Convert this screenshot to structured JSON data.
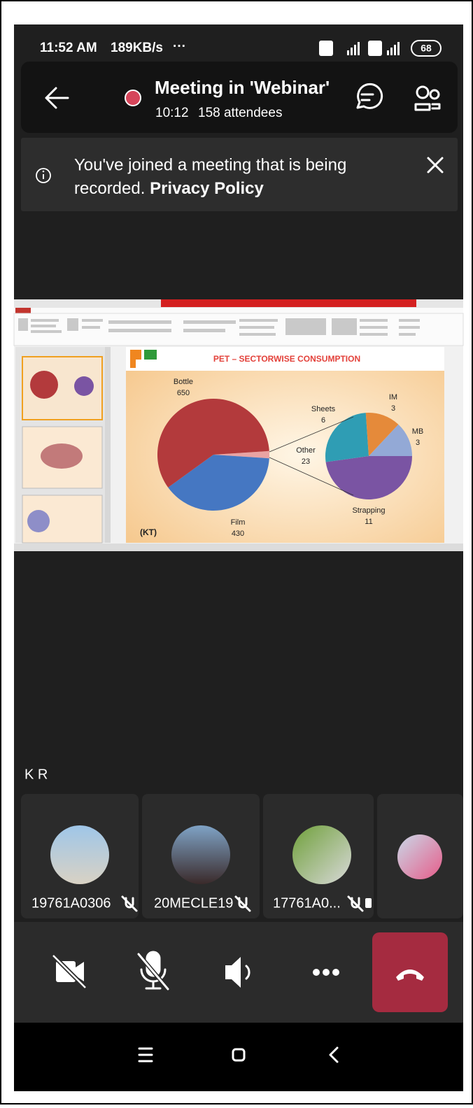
{
  "status_bar": {
    "time": "11:52 AM",
    "speed": "189KB/s",
    "more": "···",
    "battery": "68"
  },
  "header": {
    "title": "Meeting in 'Webinar'",
    "duration": "10:12",
    "attendees": "158 attendees"
  },
  "banner": {
    "text": "You've joined a meeting that is being",
    "text_2": "recorded.",
    "link": "Privacy Policy"
  },
  "slide": {
    "title": "PET – SECTORWISE CONSUMPTION",
    "unit": "(KT)",
    "main_pie": [
      {
        "label": "Other",
        "value": 23,
        "color": "#e9a3a3"
      },
      {
        "label": "Film",
        "value": 430,
        "color": "#4577c2"
      },
      {
        "label": "Bottle",
        "value": 650,
        "color": "#b33a3c"
      }
    ],
    "secondary_pie": [
      {
        "label": "MB",
        "value": 3,
        "color": "#93a9d6"
      },
      {
        "label": "Strapping",
        "value": 11,
        "color": "#7a54a3"
      },
      {
        "label": "Sheets",
        "value": 6,
        "color": "#2f9db4"
      },
      {
        "label": "IM",
        "value": 3,
        "color": "#e58a3a"
      }
    ]
  },
  "presenter": "K R",
  "participants": [
    {
      "name": "19761A0306"
    },
    {
      "name": "20MECLE19"
    },
    {
      "name": "17761A0..."
    }
  ]
}
